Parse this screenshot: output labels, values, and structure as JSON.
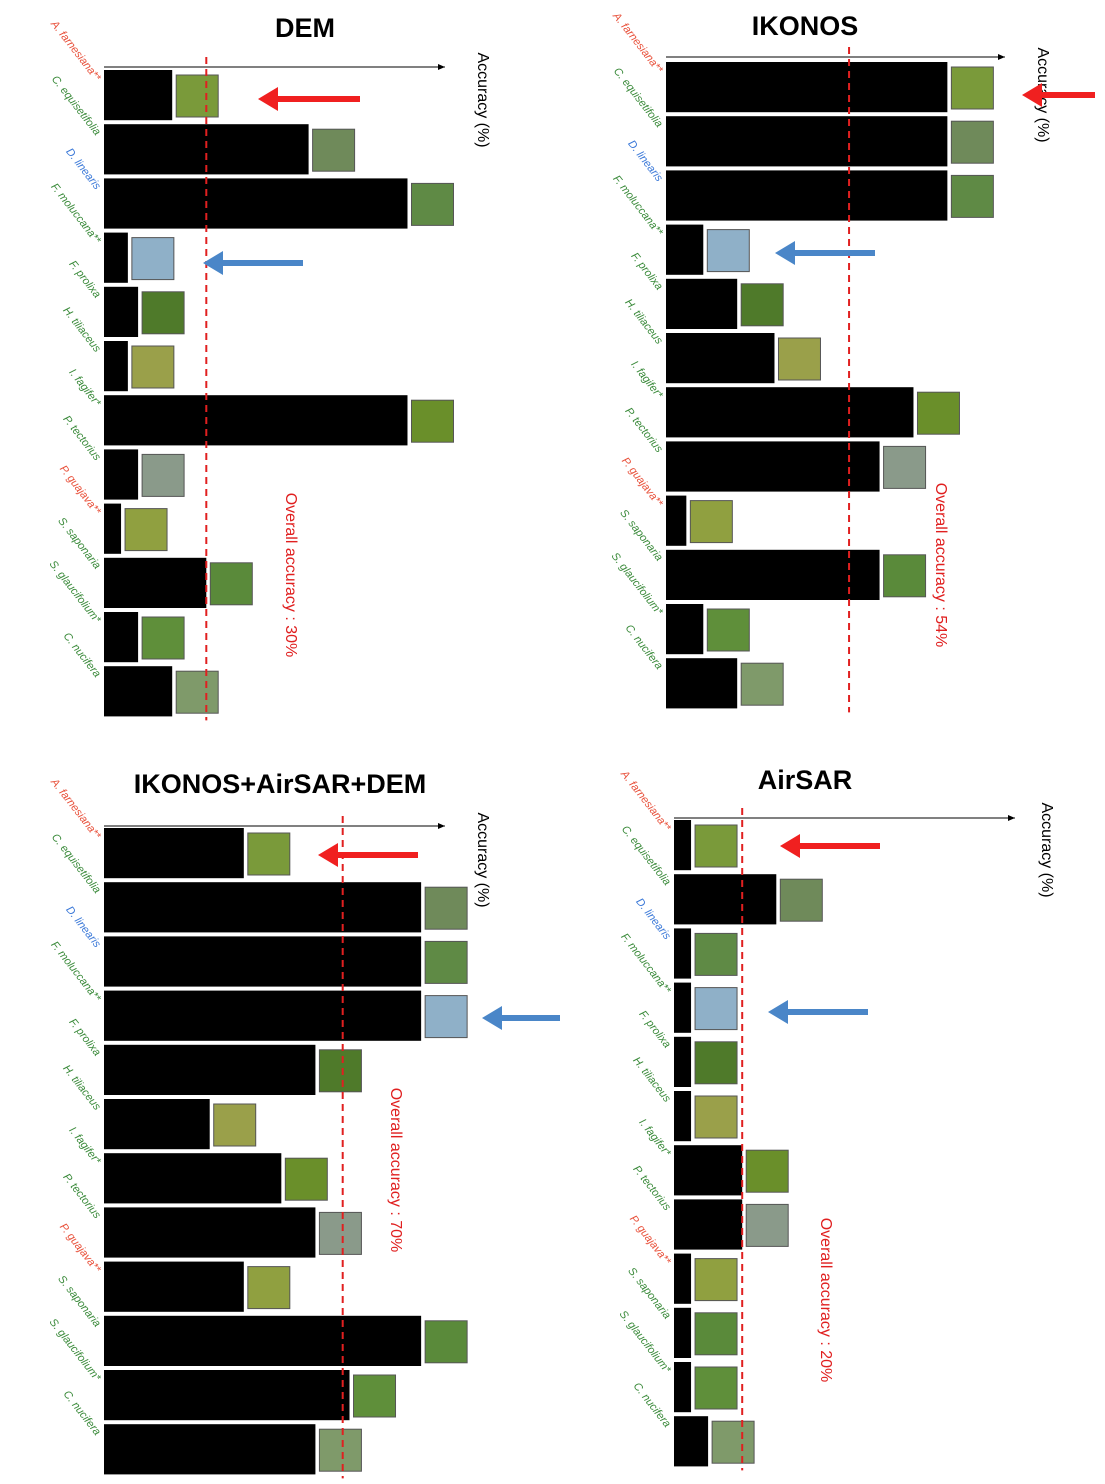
{
  "chart_data": [
    {
      "type": "bar",
      "title": "DEM",
      "x_label": "Accuracy (%)",
      "annotation": "Overall accuracy : 30%",
      "overall_accuracy": 30,
      "xlim": [
        0,
        100
      ],
      "color": "#000000",
      "categories": [
        "A. farnesiana**",
        "C. equisetifolia",
        "D. linearis",
        "F. moluccana**",
        "F. prolixa",
        "H. tiliaceus",
        "I. fagifer*",
        "P. tectorius",
        "P. guajava**",
        "S. saponaria",
        "S. glaucifolium*",
        "C. nucifera"
      ],
      "category_colors": [
        "#e8503a",
        "#3a8a3a",
        "#3a78d8",
        "#3a8a3a",
        "#3a8a3a",
        "#3a8a3a",
        "#3a8a3a",
        "#3a8a3a",
        "#e8503a",
        "#3a8a3a",
        "#3a8a3a",
        "#3a8a3a"
      ],
      "values": [
        20,
        60,
        89,
        7,
        10,
        7,
        89,
        10,
        5,
        30,
        10,
        20
      ]
    },
    {
      "type": "bar",
      "title": "IKONOS",
      "x_label": "Accuracy (%)",
      "annotation": "Overall accuracy : 54%",
      "overall_accuracy": 54,
      "xlim": [
        0,
        100
      ],
      "color": "#000000",
      "categories": [
        "A. farnesiana**",
        "C. equisetifolia",
        "D. linearis",
        "F. moluccana**",
        "F. prolixa",
        "H. tiliaceus",
        "I. fagifer*",
        "P. tectorius",
        "P. guajava**",
        "S. saponaria",
        "S. glaucifolium*",
        "C. nucifera"
      ],
      "category_colors": [
        "#e8503a",
        "#3a8a3a",
        "#3a78d8",
        "#3a8a3a",
        "#3a8a3a",
        "#3a8a3a",
        "#3a8a3a",
        "#3a8a3a",
        "#e8503a",
        "#3a8a3a",
        "#3a8a3a",
        "#3a8a3a"
      ],
      "values": [
        83,
        83,
        83,
        11,
        21,
        32,
        73,
        63,
        6,
        63,
        11,
        21
      ]
    },
    {
      "type": "bar",
      "title": "IKONOS+AirSAR+DEM",
      "x_label": "Accuracy (%)",
      "annotation": "Overall accuracy : 70%",
      "overall_accuracy": 70,
      "xlim": [
        0,
        100
      ],
      "color": "#000000",
      "categories": [
        "A. farnesiana**",
        "C. equisetifolia",
        "D. linearis",
        "F. moluccana**",
        "F. prolixa",
        "H. tiliaceus",
        "I. fagifer*",
        "P. tectorius",
        "P. guajava**",
        "S. saponaria",
        "S. glaucifolium*",
        "C. nucifera"
      ],
      "category_colors": [
        "#e8503a",
        "#3a8a3a",
        "#3a78d8",
        "#3a8a3a",
        "#3a8a3a",
        "#3a8a3a",
        "#3a8a3a",
        "#3a8a3a",
        "#e8503a",
        "#3a8a3a",
        "#3a8a3a",
        "#3a8a3a"
      ],
      "values": [
        41,
        93,
        93,
        93,
        62,
        31,
        52,
        62,
        41,
        93,
        72,
        62
      ]
    },
    {
      "type": "bar",
      "title": "AirSAR",
      "x_label": "Accuracy (%)",
      "annotation": "Overall accuracy : 20%",
      "overall_accuracy": 20,
      "xlim": [
        0,
        100
      ],
      "color": "#000000",
      "categories": [
        "A. farnesiana**",
        "C. equisetifolia",
        "D. linearis",
        "F. moluccana**",
        "F. prolixa",
        "H. tiliaceus",
        "I. fagifer*",
        "P. tectorius",
        "P. guajava**",
        "S. saponaria",
        "S. glaucifolium*",
        "C. nucifera"
      ],
      "category_colors": [
        "#e8503a",
        "#3a8a3a",
        "#3a78d8",
        "#3a8a3a",
        "#3a8a3a",
        "#3a8a3a",
        "#3a8a3a",
        "#3a8a3a",
        "#e8503a",
        "#3a8a3a",
        "#3a8a3a",
        "#3a8a3a"
      ],
      "values": [
        5,
        30,
        5,
        5,
        5,
        5,
        20,
        20,
        5,
        5,
        5,
        10
      ]
    }
  ]
}
